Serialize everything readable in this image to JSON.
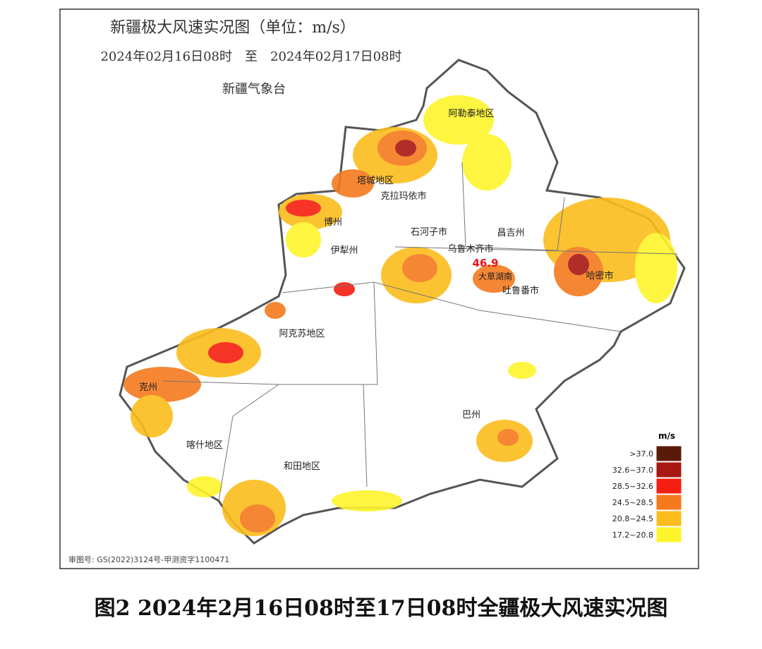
{
  "header": {
    "title": "新疆极大风速实况图（单位：m/s）",
    "period": "2024年02月16日08时　至　2024年02月17日08时",
    "agency": "新疆气象台"
  },
  "regions": [
    "阿勒泰地区",
    "塔城地区",
    "克拉玛依市",
    "博州",
    "石河子市",
    "昌吉州",
    "伊犁州",
    "乌鲁木齐市",
    "大草湖南",
    "吐鲁番市",
    "哈密市",
    "阿克苏地区",
    "克州",
    "巴州",
    "喀什地区",
    "和田地区"
  ],
  "max_value": 46.9,
  "legend": {
    "unit": "m/s",
    "items": [
      {
        "label": ">37.0",
        "color": "#5a1a0a"
      },
      {
        "label": "32.6~37.0",
        "color": "#a81812"
      },
      {
        "label": "28.5~32.6",
        "color": "#f41f10"
      },
      {
        "label": "24.5~28.5",
        "color": "#f57a1e"
      },
      {
        "label": "20.8~24.5",
        "color": "#fbbd1c"
      },
      {
        "label": "17.2~20.8",
        "color": "#fdf42c"
      }
    ]
  },
  "footer": {
    "approval": "审图号: GS(2022)3124号-甲测资字1100471",
    "caption": "图2 2024年2月16日08时至17日08时全疆极大风速实况图"
  }
}
